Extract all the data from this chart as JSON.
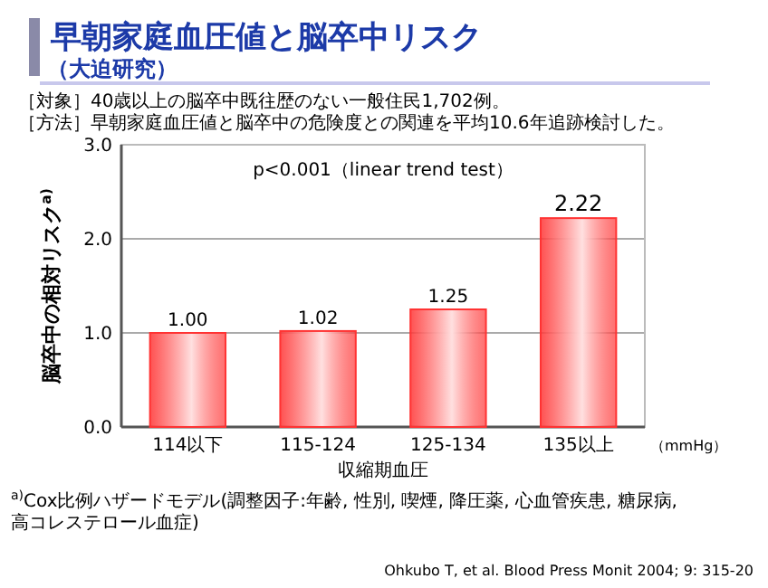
{
  "chart_data": {
    "type": "bar",
    "title": "早朝家庭血圧値と脳卒中リスク",
    "subtitle": "（大迫研究）",
    "categories": [
      "114以下",
      "115-124",
      "125-134",
      "135以上"
    ],
    "values": [
      1.0,
      1.02,
      1.25,
      2.22
    ],
    "color": "#ff3333",
    "ylim": [
      0,
      3
    ],
    "yticks": [
      {
        "value": 0,
        "label": "0.0"
      },
      {
        "value": 1,
        "label": "1.0"
      },
      {
        "value": 2,
        "label": "2.0"
      },
      {
        "value": 3,
        "label": "3.0"
      }
    ],
    "grid": "y",
    "value_labels": [
      "1.00",
      "1.02",
      "1.25",
      "2.22"
    ],
    "xlabel": "収縮期血圧",
    "ylabel": "脳卒中の相対リスク$^{a)}$",
    "annotations": [
      "［対象］40歳以上の脳卒中既往歴のない一般住民1,702例。",
      "［方法］早朝家庭血圧値と脳卒中の危険度との関連を平均10.6年追跡検討した。",
      "p<0.001（linear trend test）",
      "（mmHg）",
      "$^{a)}$Cox比例ハザードモデル(調整因子:年齢, 性別, 喫煙, 降圧薬, 心血管疾患, 糖尿病, 高コレステロール血症)",
      "Ohkubo T, et al. Blood Press Monit 2004; 9: 315-20"
    ]
  }
}
